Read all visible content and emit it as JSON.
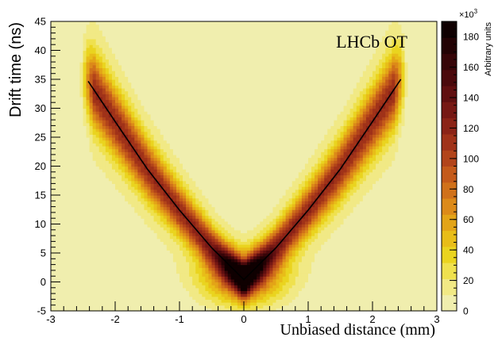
{
  "chart_data": {
    "type": "heatmap",
    "title": "",
    "xlabel": "Unbiased distance (mm)",
    "ylabel": "Drift time (ns)",
    "zlabel": "Arbitrary units",
    "z_multiplier": "×10",
    "z_multiplier_exp": "3",
    "annotation": "LHCb OT",
    "xlim": [
      -3,
      3
    ],
    "ylim": [
      -5,
      45
    ],
    "zlim": [
      0,
      190
    ],
    "x_ticks": [
      -3,
      -2,
      -1,
      0,
      1,
      2,
      3
    ],
    "y_ticks": [
      -5,
      0,
      5,
      10,
      15,
      20,
      25,
      30,
      35,
      40,
      45
    ],
    "z_ticks": [
      0,
      20,
      40,
      60,
      80,
      100,
      120,
      140,
      160,
      180
    ],
    "z_palette": [
      "#f0eeae",
      "#f1e985",
      "#efe14e",
      "#ead41f",
      "#e8bd18",
      "#e3a417",
      "#dc8a19",
      "#d0711a",
      "#c45a1a",
      "#b2441a",
      "#a03219",
      "#8b2317",
      "#761814",
      "#600f10",
      "#4b090c",
      "#360508",
      "#220204",
      "#0f0001"
    ],
    "relation_line": {
      "description": "r-t relation",
      "points": [
        [
          -2.42,
          35
        ],
        [
          -2.0,
          27.7
        ],
        [
          -1.5,
          19.5
        ],
        [
          -1.0,
          12.4
        ],
        [
          -0.5,
          5.9
        ],
        [
          0.0,
          0.4
        ],
        [
          0.5,
          5.9
        ],
        [
          1.0,
          12.4
        ],
        [
          1.5,
          19.5
        ],
        [
          2.0,
          27.7
        ],
        [
          2.44,
          35
        ]
      ]
    },
    "grid": false,
    "legend": "none"
  }
}
